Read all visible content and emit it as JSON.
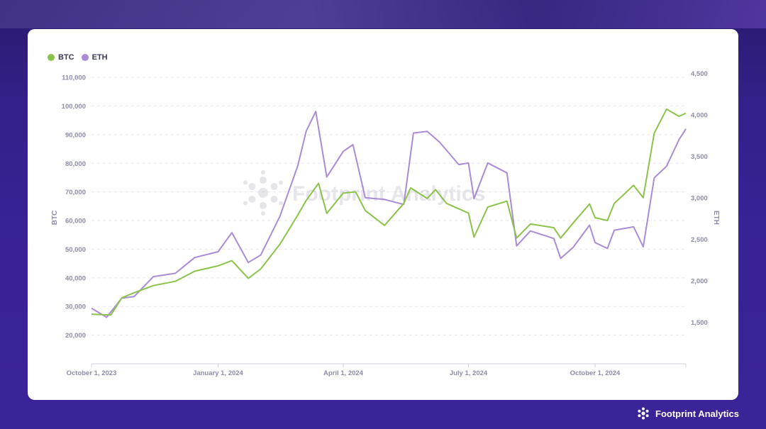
{
  "brand": {
    "name": "Footprint Analytics",
    "watermark": "Footprint Analytics",
    "icon": "footprint-flower-icon"
  },
  "colors": {
    "btc": "#8bc34a",
    "eth": "#a98bd6",
    "axis_text": "#8c8ca8",
    "grid": "#e6e6ee"
  },
  "chart_data": {
    "type": "line",
    "title": "",
    "legend": {
      "placement": "top-left",
      "entries": [
        "BTC",
        "ETH"
      ]
    },
    "grid": true,
    "xlabel": "",
    "x_ticks": [
      "October 1, 2023",
      "January 1, 2024",
      "April 1, 2024",
      "July 1, 2024",
      "October 1, 2024"
    ],
    "x_range": [
      "2023-10-01",
      "2024-12-06"
    ],
    "ylabel_left": "BTC",
    "ylim_left": [
      10000,
      112000
    ],
    "y_ticks_left": [
      "20,000",
      "30,000",
      "40,000",
      "50,000",
      "60,000",
      "70,000",
      "80,000",
      "90,000",
      "100,000",
      "110,000"
    ],
    "ylabel_right": "ETH",
    "ylim_right": [
      1000,
      4520
    ],
    "y_ticks_right": [
      "1,500",
      "2,000",
      "2,500",
      "3,000",
      "3,500",
      "4,000",
      "4,500"
    ],
    "series": [
      {
        "name": "BTC",
        "axis": "left",
        "x": [
          "2023-10-01",
          "2023-10-15",
          "2023-10-23",
          "2023-11-01",
          "2023-11-15",
          "2023-12-01",
          "2023-12-15",
          "2024-01-01",
          "2024-01-11",
          "2024-01-23",
          "2024-02-01",
          "2024-02-15",
          "2024-02-28",
          "2024-03-05",
          "2024-03-14",
          "2024-03-20",
          "2024-04-01",
          "2024-04-10",
          "2024-04-17",
          "2024-05-01",
          "2024-05-15",
          "2024-05-20",
          "2024-06-01",
          "2024-06-07",
          "2024-06-15",
          "2024-07-01",
          "2024-07-05",
          "2024-07-15",
          "2024-07-29",
          "2024-08-05",
          "2024-08-15",
          "2024-09-01",
          "2024-09-06",
          "2024-09-15",
          "2024-09-27",
          "2024-10-01",
          "2024-10-10",
          "2024-10-15",
          "2024-10-29",
          "2024-11-05",
          "2024-11-13",
          "2024-11-22",
          "2024-12-01",
          "2024-12-06"
        ],
        "values": [
          27300,
          27000,
          33000,
          34800,
          37300,
          38800,
          42300,
          44200,
          46000,
          39800,
          43100,
          51800,
          62000,
          67000,
          73000,
          62500,
          69600,
          70000,
          63500,
          58300,
          66000,
          71400,
          67700,
          70800,
          66000,
          62600,
          54200,
          64700,
          66800,
          53900,
          58800,
          57500,
          53900,
          59100,
          65800,
          61000,
          60000,
          66000,
          72300,
          68000,
          90500,
          98900,
          96400,
          97500
        ]
      },
      {
        "name": "ETH",
        "axis": "right",
        "x": [
          "2023-10-01",
          "2023-10-12",
          "2023-10-23",
          "2023-11-01",
          "2023-11-15",
          "2023-12-01",
          "2023-12-15",
          "2024-01-01",
          "2024-01-11",
          "2024-01-23",
          "2024-02-01",
          "2024-02-15",
          "2024-02-28",
          "2024-03-05",
          "2024-03-12",
          "2024-03-20",
          "2024-04-01",
          "2024-04-08",
          "2024-04-17",
          "2024-05-01",
          "2024-05-15",
          "2024-05-22",
          "2024-06-01",
          "2024-06-10",
          "2024-06-24",
          "2024-07-01",
          "2024-07-05",
          "2024-07-15",
          "2024-07-29",
          "2024-08-05",
          "2024-08-15",
          "2024-09-01",
          "2024-09-06",
          "2024-09-15",
          "2024-09-27",
          "2024-10-01",
          "2024-10-10",
          "2024-10-15",
          "2024-10-29",
          "2024-11-05",
          "2024-11-13",
          "2024-11-22",
          "2024-12-01",
          "2024-12-06"
        ],
        "values": [
          1670,
          1560,
          1790,
          1810,
          2050,
          2090,
          2280,
          2350,
          2580,
          2220,
          2310,
          2780,
          3390,
          3800,
          4040,
          3250,
          3560,
          3640,
          3000,
          2980,
          2920,
          3780,
          3800,
          3670,
          3400,
          3420,
          2990,
          3420,
          3300,
          2420,
          2600,
          2510,
          2270,
          2400,
          2670,
          2460,
          2390,
          2610,
          2650,
          2410,
          3240,
          3380,
          3700,
          3830
        ]
      }
    ]
  }
}
